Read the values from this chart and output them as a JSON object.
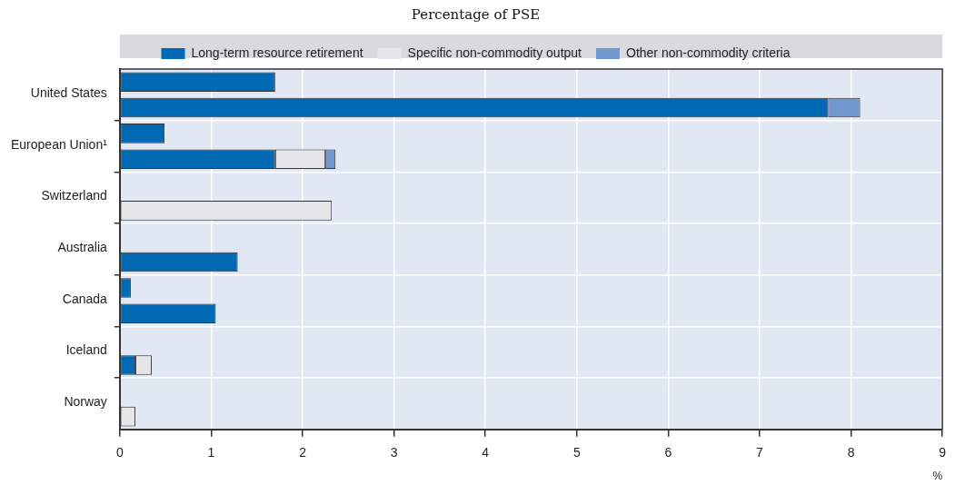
{
  "chart_data": {
    "type": "bar",
    "orientation": "horizontal",
    "stacked": true,
    "title": "Percentage of PSE",
    "xlabel": "%",
    "categories": [
      "United States",
      null,
      "European Union¹",
      null,
      "Switzerland",
      null,
      "Australia",
      null,
      "Canada",
      null,
      "Iceland",
      null,
      "Norway",
      null
    ],
    "series": [
      {
        "name": "Long-term resource retirement",
        "color": "#0069b4",
        "values": [
          1.7,
          7.75,
          0.49,
          1.7,
          null,
          null,
          null,
          1.29,
          0.12,
          1.05,
          null,
          0.17,
          null,
          null
        ]
      },
      {
        "name": "Specific non-commodity output",
        "color": "#e5e6e8",
        "values": [
          null,
          null,
          null,
          0.55,
          null,
          2.32,
          null,
          null,
          null,
          null,
          null,
          0.18,
          null,
          0.17
        ]
      },
      {
        "name": "Other non-commodity criteria",
        "color": "#7199d0",
        "values": [
          null,
          0.35,
          null,
          0.11,
          null,
          null,
          null,
          null,
          null,
          null,
          null,
          null,
          null,
          null
        ]
      }
    ],
    "xlim": [
      0,
      9
    ],
    "xticks": [
      0,
      1,
      2,
      3,
      4,
      5,
      6,
      7,
      8,
      9
    ],
    "grid": true,
    "legend": "top"
  }
}
